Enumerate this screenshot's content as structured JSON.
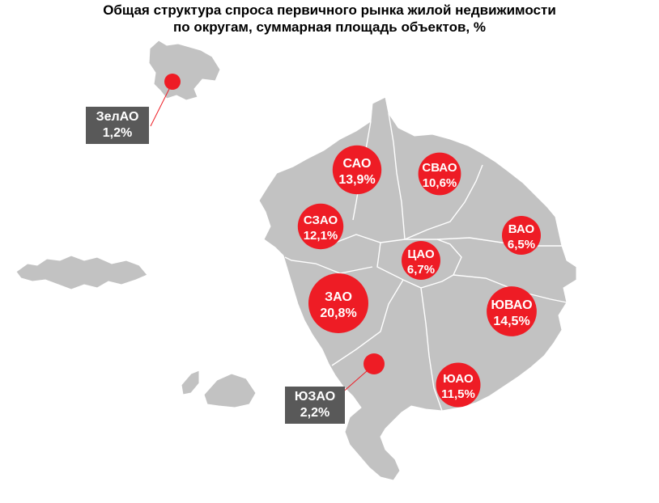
{
  "title": {
    "line1": "Общая структура спроса первичного рынка жилой недвижимости",
    "line2": "по округам, суммарная площадь объектов, %"
  },
  "colors": {
    "territory": "#c2c2c2",
    "border": "#ffffff",
    "bubble": "#ee1c25",
    "callout_bg": "#595959",
    "leader_line": "#ee1c25"
  },
  "districts": [
    {
      "name": "САО",
      "value": "13,9%",
      "share": 13.9
    },
    {
      "name": "СВАО",
      "value": "10,6%",
      "share": 10.6
    },
    {
      "name": "СЗАО",
      "value": "12,1%",
      "share": 12.1
    },
    {
      "name": "ВАО",
      "value": "6,5%",
      "share": 6.5
    },
    {
      "name": "ЦАО",
      "value": "6,7%",
      "share": 6.7
    },
    {
      "name": "ЗАО",
      "value": "20,8%",
      "share": 20.8
    },
    {
      "name": "ЮВАО",
      "value": "14,5%",
      "share": 14.5
    },
    {
      "name": "ЮАО",
      "value": "11,5%",
      "share": 11.5
    }
  ],
  "callouts": [
    {
      "name": "ЗелАО",
      "value": "1,2%",
      "share": 1.2
    },
    {
      "name": "ЮЗАО",
      "value": "2,2%",
      "share": 2.2
    }
  ]
}
